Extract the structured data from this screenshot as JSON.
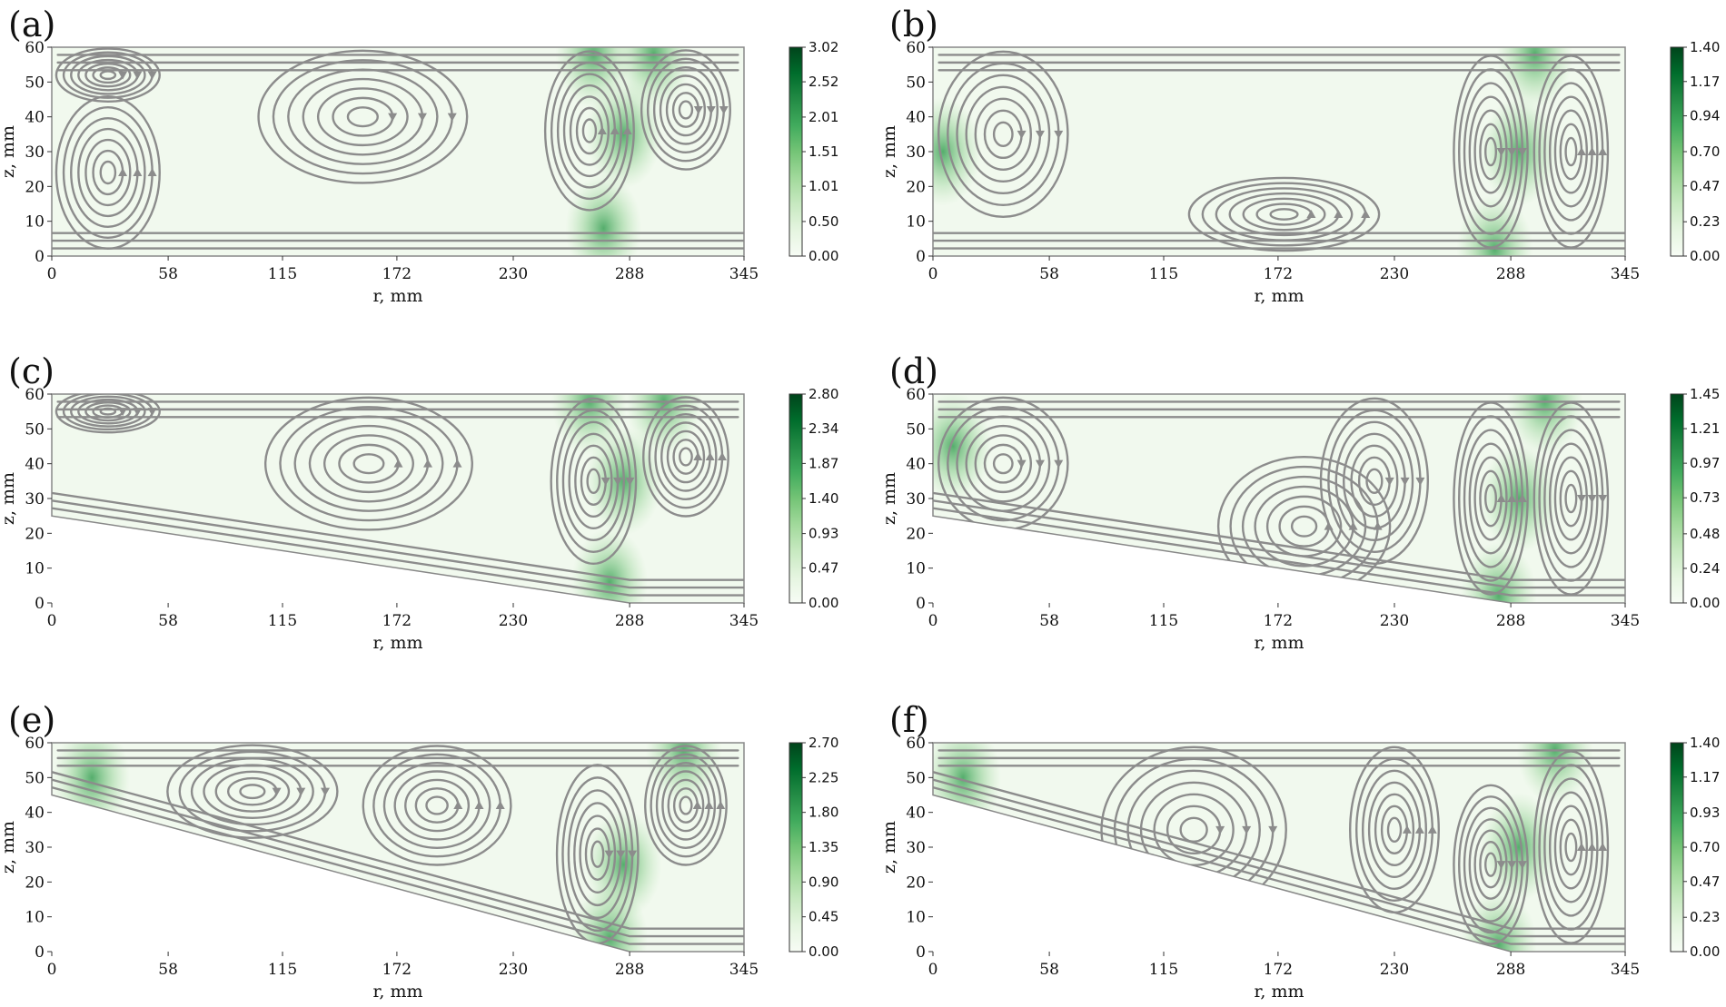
{
  "chart_data": [
    {
      "panel_label": "(a)",
      "type": "streamline-field",
      "xlabel": "r, mm",
      "ylabel": "z, mm",
      "xticks": [
        "0",
        "58",
        "115",
        "172",
        "230",
        "288",
        "345"
      ],
      "yticks": [
        "0",
        "10",
        "20",
        "30",
        "40",
        "50",
        "60"
      ],
      "xlim": [
        0,
        345
      ],
      "ylim": [
        0,
        60
      ],
      "bottom_boundary": [
        [
          0,
          0
        ],
        [
          345,
          0
        ]
      ],
      "colorbar": {
        "ticks": [
          "0.00",
          "0.50",
          "1.01",
          "1.51",
          "2.01",
          "2.52",
          "3.02"
        ],
        "min": 0,
        "max": 3.02,
        "colormap": "Greens"
      },
      "vortex_centers": [
        [
          28,
          52
        ],
        [
          28,
          24
        ],
        [
          155,
          40
        ],
        [
          268,
          36
        ],
        [
          316,
          42
        ]
      ],
      "high_intensity_regions": [
        [
          285,
          35
        ],
        [
          270,
          58
        ],
        [
          300,
          58
        ],
        [
          275,
          8
        ]
      ]
    },
    {
      "panel_label": "(b)",
      "type": "streamline-field",
      "xlabel": "r, mm",
      "ylabel": "z, mm",
      "xticks": [
        "0",
        "58",
        "115",
        "172",
        "230",
        "288",
        "345"
      ],
      "yticks": [
        "0",
        "10",
        "20",
        "30",
        "40",
        "50",
        "60"
      ],
      "xlim": [
        0,
        345
      ],
      "ylim": [
        0,
        60
      ],
      "bottom_boundary": [
        [
          0,
          0
        ],
        [
          345,
          0
        ]
      ],
      "colorbar": {
        "ticks": [
          "0.00",
          "0.23",
          "0.47",
          "0.70",
          "0.94",
          "1.17",
          "1.40"
        ],
        "min": 0,
        "max": 1.4,
        "colormap": "Greens"
      },
      "vortex_centers": [
        [
          35,
          35
        ],
        [
          175,
          12
        ],
        [
          278,
          30
        ],
        [
          318,
          30
        ]
      ],
      "high_intensity_regions": [
        [
          280,
          2
        ],
        [
          292,
          30
        ],
        [
          5,
          30
        ],
        [
          300,
          58
        ]
      ]
    },
    {
      "panel_label": "(c)",
      "type": "streamline-field",
      "xlabel": "r, mm",
      "ylabel": "z, mm",
      "xticks": [
        "0",
        "58",
        "115",
        "172",
        "230",
        "288",
        "345"
      ],
      "yticks": [
        "0",
        "10",
        "20",
        "30",
        "40",
        "50",
        "60"
      ],
      "xlim": [
        0,
        345
      ],
      "ylim": [
        0,
        60
      ],
      "bottom_boundary": [
        [
          0,
          25
        ],
        [
          288,
          0
        ],
        [
          345,
          0
        ]
      ],
      "colorbar": {
        "ticks": [
          "0.00",
          "0.47",
          "0.93",
          "1.40",
          "1.87",
          "2.34",
          "2.80"
        ],
        "min": 0,
        "max": 2.8,
        "colormap": "Greens"
      },
      "vortex_centers": [
        [
          28,
          55
        ],
        [
          158,
          40
        ],
        [
          270,
          35
        ],
        [
          316,
          42
        ]
      ],
      "high_intensity_regions": [
        [
          285,
          35
        ],
        [
          268,
          58
        ],
        [
          305,
          58
        ],
        [
          278,
          6
        ]
      ]
    },
    {
      "panel_label": "(d)",
      "type": "streamline-field",
      "xlabel": "r, mm",
      "ylabel": "z, mm",
      "xticks": [
        "0",
        "58",
        "115",
        "172",
        "230",
        "288",
        "345"
      ],
      "yticks": [
        "0",
        "10",
        "20",
        "30",
        "40",
        "50",
        "60"
      ],
      "xlim": [
        0,
        345
      ],
      "ylim": [
        0,
        60
      ],
      "bottom_boundary": [
        [
          0,
          25
        ],
        [
          288,
          0
        ],
        [
          345,
          0
        ]
      ],
      "colorbar": {
        "ticks": [
          "0.00",
          "0.24",
          "0.48",
          "0.73",
          "0.97",
          "1.21",
          "1.45"
        ],
        "min": 0,
        "max": 1.45,
        "colormap": "Greens"
      },
      "vortex_centers": [
        [
          35,
          40
        ],
        [
          185,
          22
        ],
        [
          220,
          35
        ],
        [
          278,
          30
        ],
        [
          318,
          30
        ]
      ],
      "high_intensity_regions": [
        [
          282,
          2
        ],
        [
          292,
          30
        ],
        [
          10,
          45
        ],
        [
          305,
          58
        ]
      ]
    },
    {
      "panel_label": "(e)",
      "type": "streamline-field",
      "xlabel": "r, mm",
      "ylabel": "z, mm",
      "xticks": [
        "0",
        "58",
        "115",
        "172",
        "230",
        "288",
        "345"
      ],
      "yticks": [
        "0",
        "10",
        "20",
        "30",
        "40",
        "50",
        "60"
      ],
      "xlim": [
        0,
        345
      ],
      "ylim": [
        0,
        60
      ],
      "bottom_boundary": [
        [
          0,
          45
        ],
        [
          288,
          0
        ],
        [
          345,
          0
        ]
      ],
      "colorbar": {
        "ticks": [
          "0.00",
          "0.45",
          "0.90",
          "1.35",
          "1.80",
          "2.25",
          "2.70"
        ],
        "min": 0,
        "max": 2.7,
        "colormap": "Greens"
      },
      "vortex_centers": [
        [
          100,
          46
        ],
        [
          192,
          42
        ],
        [
          272,
          28
        ],
        [
          316,
          42
        ]
      ],
      "high_intensity_regions": [
        [
          285,
          25
        ],
        [
          20,
          50
        ],
        [
          315,
          58
        ],
        [
          278,
          4
        ]
      ]
    },
    {
      "panel_label": "(f)",
      "type": "streamline-field",
      "xlabel": "r, mm",
      "ylabel": "z, mm",
      "xticks": [
        "0",
        "58",
        "115",
        "172",
        "230",
        "288",
        "345"
      ],
      "yticks": [
        "0",
        "10",
        "20",
        "30",
        "40",
        "50",
        "60"
      ],
      "xlim": [
        0,
        345
      ],
      "ylim": [
        0,
        60
      ],
      "bottom_boundary": [
        [
          0,
          45
        ],
        [
          288,
          0
        ],
        [
          345,
          0
        ]
      ],
      "colorbar": {
        "ticks": [
          "0.00",
          "0.23",
          "0.47",
          "0.70",
          "0.93",
          "1.17",
          "1.40"
        ],
        "min": 0,
        "max": 1.4,
        "colormap": "Greens"
      },
      "vortex_centers": [
        [
          130,
          35
        ],
        [
          230,
          35
        ],
        [
          278,
          25
        ],
        [
          318,
          30
        ]
      ],
      "high_intensity_regions": [
        [
          282,
          2
        ],
        [
          292,
          30
        ],
        [
          15,
          50
        ],
        [
          310,
          58
        ]
      ]
    }
  ]
}
